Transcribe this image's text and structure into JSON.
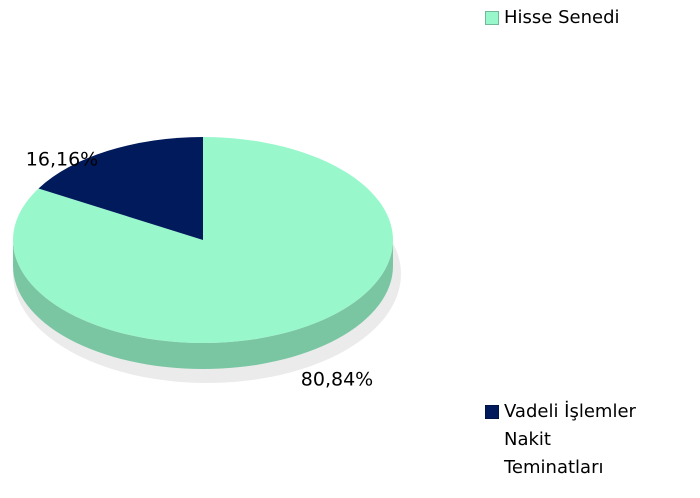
{
  "chart_data": {
    "type": "pie",
    "categories": [
      "Hisse Senedi",
      "Vadeli İşlemler Nakit Teminatları"
    ],
    "values": [
      80.84,
      16.16
    ],
    "value_labels": [
      "80,84%",
      "16,16%"
    ],
    "colors": [
      "#99f7cc",
      "#001a5c"
    ],
    "legend": "right"
  }
}
